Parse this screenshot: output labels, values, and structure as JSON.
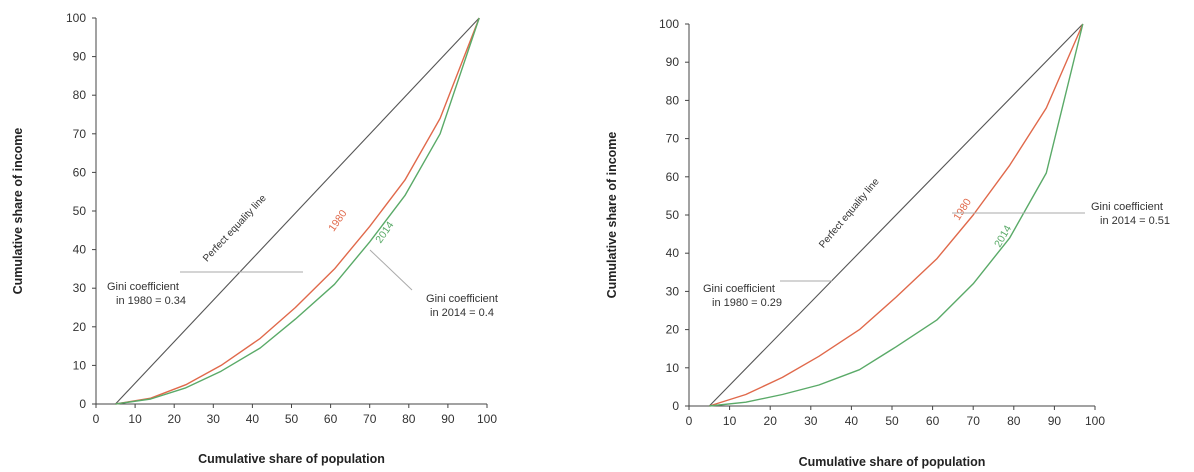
{
  "colors": {
    "equality": "#555555",
    "y1980": "#e0694b",
    "y2014": "#5aaa68",
    "axis": "#444444",
    "leader": "#aaaaaa"
  },
  "chart_data": [
    {
      "type": "line",
      "xlabel": "Cumulative share of population",
      "ylabel": "Cumulative share of income",
      "xlim": [
        0,
        100
      ],
      "ylim": [
        0,
        100
      ],
      "x_ticks": [
        "0",
        "10",
        "20",
        "30",
        "40",
        "50",
        "60",
        "70",
        "80",
        "90",
        "100"
      ],
      "y_ticks": [
        "0",
        "10",
        "20",
        "30",
        "40",
        "50",
        "60",
        "70",
        "80",
        "90",
        "100"
      ],
      "grid": false,
      "series": [
        {
          "name": "Perfect equality line",
          "x": [
            5,
            98
          ],
          "y": [
            0,
            100
          ]
        },
        {
          "name": "1980",
          "x": [
            5,
            14,
            23,
            32,
            42,
            51,
            61,
            70,
            79,
            88,
            98
          ],
          "y": [
            0,
            1.5,
            5,
            10,
            17,
            25,
            35,
            46,
            58,
            74,
            100
          ]
        },
        {
          "name": "2014",
          "x": [
            5,
            14,
            23,
            32,
            42,
            51,
            61,
            70,
            79,
            88,
            98
          ],
          "y": [
            0,
            1.3,
            4.2,
            8.5,
            14.5,
            22,
            31,
            42,
            54,
            70,
            100
          ]
        }
      ],
      "annotations": [
        {
          "text": [
            "Gini coefficient",
            "in 1980 = 0.34"
          ]
        },
        {
          "text": [
            "Gini coefficient",
            "in 2014 = 0.4"
          ]
        }
      ]
    },
    {
      "type": "line",
      "xlabel": "Cumulative share of population",
      "ylabel": "Cumulative share of income",
      "xlim": [
        0,
        100
      ],
      "ylim": [
        0,
        100
      ],
      "x_ticks": [
        "0",
        "10",
        "20",
        "30",
        "40",
        "50",
        "60",
        "70",
        "80",
        "90",
        "100"
      ],
      "y_ticks": [
        "0",
        "10",
        "20",
        "30",
        "40",
        "50",
        "60",
        "70",
        "80",
        "90",
        "100"
      ],
      "grid": false,
      "series": [
        {
          "name": "Perfect equality line",
          "x": [
            5,
            97
          ],
          "y": [
            0,
            100
          ]
        },
        {
          "name": "1980",
          "x": [
            5,
            14,
            23,
            32,
            42,
            51,
            61,
            70,
            79,
            88,
            97
          ],
          "y": [
            0,
            3,
            7.5,
            13,
            20,
            28.5,
            38.5,
            50,
            63,
            78,
            100
          ]
        },
        {
          "name": "2014",
          "x": [
            5,
            14,
            23,
            32,
            42,
            51,
            61,
            70,
            79,
            88,
            97
          ],
          "y": [
            0,
            1,
            3,
            5.5,
            9.5,
            15.5,
            22.5,
            32,
            44,
            61,
            100
          ]
        }
      ],
      "annotations": [
        {
          "text": [
            "Gini coefficient",
            "in 1980 = 0.29"
          ]
        },
        {
          "text": [
            "Gini coefficient",
            "in 2014 = 0.51"
          ]
        }
      ]
    }
  ]
}
